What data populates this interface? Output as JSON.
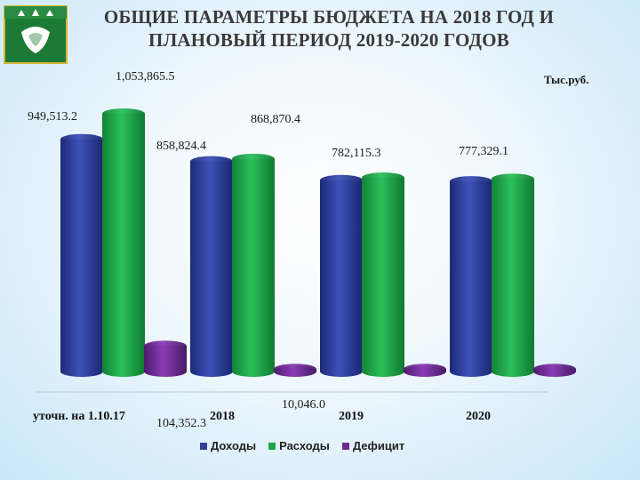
{
  "title": "ОБЩИЕ ПАРАМЕТРЫ БЮДЖЕТА НА 2018 ГОД И ПЛАНОВЫЙ ПЕРИОД 2019-2020 ГОДОВ",
  "unit": "Тыс.руб.",
  "colors": {
    "income": "#2f3f9a",
    "expense": "#1fa64a",
    "deficit": "#6b2a8f"
  },
  "chart_data": {
    "type": "bar",
    "categories": [
      "уточн. на 1.10.17",
      "2018",
      "2019",
      "2020"
    ],
    "series": [
      {
        "name": "Доходы",
        "values": [
          949513.2,
          858824.4,
          782115.3,
          777329.1
        ],
        "labels": [
          "949,513.2",
          "858,824.4",
          "782,115.3",
          "777,329.1"
        ]
      },
      {
        "name": "Расходы",
        "values": [
          1053865.5,
          868870.4,
          792161.3,
          787375.1
        ],
        "labels": [
          "1,053,865.5",
          "868,870.4",
          "",
          ""
        ]
      },
      {
        "name": "Дефицит",
        "values": [
          104352.3,
          10046.0,
          10046.0,
          10046.0
        ],
        "labels": [
          "104,352.3",
          "10,046.0",
          "",
          ""
        ]
      }
    ],
    "ylim": [
      0,
      1053865.5
    ],
    "legend": "bottom",
    "grid": false
  }
}
